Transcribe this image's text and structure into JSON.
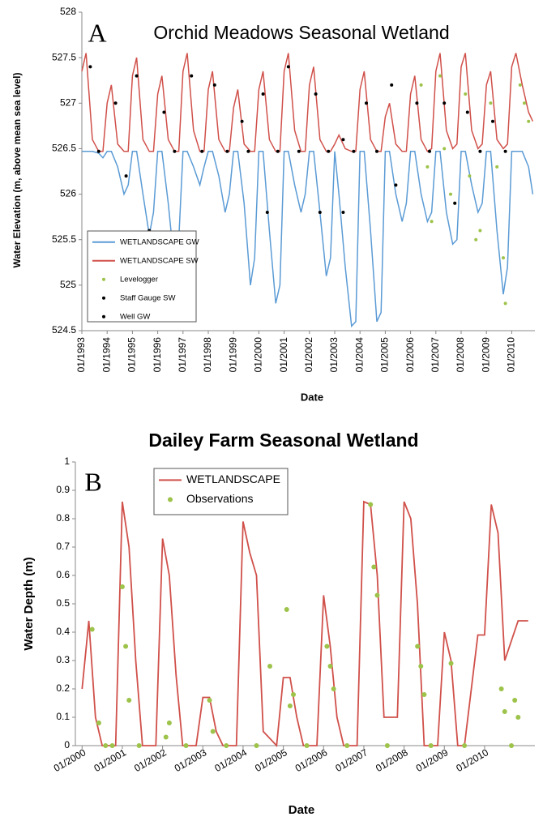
{
  "chart_data": [
    {
      "type": "line",
      "panel_label": "A",
      "title": "Orchid Meadows Seasonal Wetland",
      "y_label": "Water Elevation (m, above mean sea level)",
      "x_label": "Date",
      "legend": "lower left",
      "xlim": [
        "1993-01",
        "2010-12"
      ],
      "xticks": [
        {
          "value": "1993-01",
          "label": "01/1993"
        },
        {
          "value": "1994-01",
          "label": "01/1994"
        },
        {
          "value": "1995-01",
          "label": "01/1995"
        },
        {
          "value": "1996-01",
          "label": "01/1996"
        },
        {
          "value": "1997-01",
          "label": "01/1997"
        },
        {
          "value": "1998-01",
          "label": "01/1998"
        },
        {
          "value": "1999-01",
          "label": "01/1999"
        },
        {
          "value": "2000-01",
          "label": "01/2000"
        },
        {
          "value": "2001-01",
          "label": "01/2001"
        },
        {
          "value": "2002-01",
          "label": "01/2002"
        },
        {
          "value": "2003-01",
          "label": "01/2003"
        },
        {
          "value": "2004-01",
          "label": "01/2004"
        },
        {
          "value": "2005-01",
          "label": "01/2005"
        },
        {
          "value": "2006-01",
          "label": "01/2006"
        },
        {
          "value": "2007-01",
          "label": "01/2007"
        },
        {
          "value": "2008-01",
          "label": "01/2008"
        },
        {
          "value": "2009-01",
          "label": "01/2009"
        },
        {
          "value": "2010-01",
          "label": "01/2010"
        }
      ],
      "ylim": [
        524.5,
        528
      ],
      "yticks": [
        524.5,
        525,
        525.5,
        526,
        526.5,
        527,
        527.5,
        528
      ],
      "x": [
        "1993-01",
        "1993-03",
        "1993-06",
        "1993-09",
        "1993-11",
        "1994-01",
        "1994-03",
        "1994-06",
        "1994-09",
        "1994-11",
        "1995-01",
        "1995-03",
        "1995-06",
        "1995-09",
        "1995-11",
        "1996-01",
        "1996-03",
        "1996-06",
        "1996-09",
        "1996-11",
        "1997-01",
        "1997-03",
        "1997-06",
        "1997-09",
        "1997-11",
        "1998-01",
        "1998-03",
        "1998-06",
        "1998-09",
        "1998-11",
        "1999-01",
        "1999-03",
        "1999-06",
        "1999-09",
        "1999-11",
        "2000-01",
        "2000-03",
        "2000-06",
        "2000-09",
        "2000-11",
        "2001-01",
        "2001-03",
        "2001-06",
        "2001-09",
        "2001-11",
        "2002-01",
        "2002-03",
        "2002-06",
        "2002-09",
        "2002-11",
        "2003-01",
        "2003-03",
        "2003-06",
        "2003-09",
        "2003-11",
        "2004-01",
        "2004-03",
        "2004-06",
        "2004-09",
        "2004-11",
        "2005-01",
        "2005-03",
        "2005-06",
        "2005-09",
        "2005-11",
        "2006-01",
        "2006-03",
        "2006-06",
        "2006-09",
        "2006-11",
        "2007-01",
        "2007-03",
        "2007-06",
        "2007-09",
        "2007-11",
        "2008-01",
        "2008-03",
        "2008-06",
        "2008-09",
        "2008-11",
        "2009-01",
        "2009-03",
        "2009-06",
        "2009-09",
        "2009-11",
        "2010-01",
        "2010-03",
        "2010-06",
        "2010-09",
        "2010-11"
      ],
      "series": [
        {
          "name": "WETLANDSCAPE GW",
          "type": "line",
          "color": "#5b9bd5",
          "values": [
            526.47,
            526.47,
            526.47,
            526.45,
            526.4,
            526.47,
            526.47,
            526.3,
            526.0,
            526.1,
            526.47,
            526.47,
            526.0,
            525.55,
            525.8,
            526.47,
            526.47,
            525.9,
            525.2,
            525.5,
            526.47,
            526.47,
            526.3,
            526.1,
            526.3,
            526.47,
            526.47,
            526.2,
            525.8,
            526.0,
            526.47,
            526.47,
            525.9,
            525.0,
            525.3,
            526.47,
            526.47,
            525.6,
            524.8,
            525.0,
            526.47,
            526.47,
            526.1,
            525.8,
            526.0,
            526.47,
            526.47,
            525.8,
            525.1,
            525.3,
            526.47,
            526.0,
            525.2,
            524.55,
            524.6,
            526.47,
            526.47,
            525.6,
            524.6,
            524.7,
            526.47,
            526.47,
            526.0,
            525.7,
            525.9,
            526.47,
            526.47,
            526.0,
            525.7,
            525.8,
            526.47,
            526.47,
            525.8,
            525.45,
            525.5,
            526.47,
            526.47,
            526.1,
            525.8,
            525.9,
            526.47,
            526.47,
            525.6,
            524.9,
            525.2,
            526.47,
            526.47,
            526.47,
            526.3,
            526.0
          ]
        },
        {
          "name": "WETLANDSCAPE SW",
          "type": "line",
          "color": "#d0504a",
          "values": [
            527.35,
            527.55,
            526.6,
            526.47,
            526.47,
            527.0,
            527.2,
            526.55,
            526.47,
            526.47,
            527.3,
            527.5,
            526.6,
            526.47,
            526.47,
            527.1,
            527.3,
            526.6,
            526.47,
            526.47,
            527.35,
            527.55,
            526.7,
            526.47,
            526.47,
            527.15,
            527.35,
            526.6,
            526.47,
            526.47,
            526.95,
            527.15,
            526.55,
            526.47,
            526.47,
            527.15,
            527.35,
            526.6,
            526.47,
            526.47,
            527.35,
            527.55,
            526.7,
            526.47,
            526.47,
            527.2,
            527.4,
            526.6,
            526.47,
            526.47,
            526.55,
            526.65,
            526.5,
            526.47,
            526.47,
            527.15,
            527.35,
            526.6,
            526.47,
            526.47,
            526.85,
            527.0,
            526.55,
            526.47,
            526.47,
            527.1,
            527.3,
            526.6,
            526.47,
            526.5,
            527.35,
            527.55,
            526.7,
            526.5,
            526.55,
            527.4,
            527.55,
            526.7,
            526.5,
            526.55,
            527.2,
            527.35,
            526.6,
            526.5,
            526.55,
            527.4,
            527.55,
            527.2,
            526.9,
            526.8
          ]
        },
        {
          "name": "Levelogger",
          "type": "scatter",
          "color": "#9dc34a",
          "x": [
            "2006-06",
            "2006-09",
            "2006-11",
            "2007-03",
            "2007-05",
            "2007-08",
            "2007-10",
            "2008-03",
            "2008-05",
            "2008-08",
            "2008-10",
            "2009-03",
            "2009-06",
            "2009-09",
            "2009-10",
            "2010-05",
            "2010-07",
            "2010-09"
          ],
          "values": [
            527.2,
            526.3,
            525.7,
            527.3,
            526.5,
            526.0,
            525.9,
            527.1,
            526.2,
            525.5,
            525.6,
            527.0,
            526.3,
            525.3,
            524.8,
            527.2,
            527.0,
            526.8
          ]
        },
        {
          "name": "Staff Gauge SW",
          "type": "scatter",
          "color": "#000000",
          "x": [
            "1993-05",
            "1994-05",
            "1995-03",
            "1996-04",
            "1997-05",
            "1998-04",
            "1999-05",
            "2000-03",
            "2001-03",
            "2002-04",
            "2003-05",
            "2004-04",
            "2005-04",
            "2006-04",
            "2007-05",
            "2008-04",
            "2009-04"
          ],
          "values": [
            527.4,
            527.0,
            527.3,
            526.9,
            527.3,
            527.2,
            526.8,
            527.1,
            527.4,
            527.1,
            526.6,
            527.0,
            527.2,
            527.0,
            527.0,
            526.9,
            526.8
          ]
        },
        {
          "name": "Well GW",
          "type": "scatter",
          "color": "#000000",
          "x": [
            "1993-09",
            "1994-10",
            "1995-09",
            "1996-09",
            "1997-10",
            "1998-10",
            "1999-08",
            "2000-05",
            "2000-10",
            "2001-08",
            "2002-06",
            "2002-10",
            "2003-05",
            "2003-10",
            "2004-09",
            "2005-06",
            "2006-10",
            "2007-10",
            "2008-10",
            "2009-10"
          ],
          "values": [
            526.47,
            526.2,
            525.6,
            526.47,
            526.47,
            526.47,
            526.47,
            525.8,
            526.47,
            526.47,
            525.8,
            526.47,
            525.8,
            526.47,
            526.47,
            526.1,
            526.47,
            525.9,
            526.47,
            526.47
          ]
        }
      ]
    },
    {
      "type": "line",
      "panel_label": "B",
      "title": "Dailey Farm Seasonal Wetland",
      "y_label": "Water Depth (m)",
      "x_label": "Date",
      "legend": "upper center",
      "xlim": [
        "1999-11",
        "2011-04"
      ],
      "xticks": [
        {
          "value": "2000-01",
          "label": "01/2000"
        },
        {
          "value": "2001-01",
          "label": "01/2001"
        },
        {
          "value": "2002-01",
          "label": "01/2002"
        },
        {
          "value": "2003-01",
          "label": "01/2003"
        },
        {
          "value": "2004-01",
          "label": "01/2004"
        },
        {
          "value": "2005-01",
          "label": "01/2005"
        },
        {
          "value": "2006-01",
          "label": "01/2006"
        },
        {
          "value": "2007-01",
          "label": "01/2007"
        },
        {
          "value": "2008-01",
          "label": "01/2008"
        },
        {
          "value": "2009-01",
          "label": "01/2009"
        },
        {
          "value": "2010-01",
          "label": "01/2010"
        }
      ],
      "ylim": [
        0,
        1
      ],
      "yticks": [
        0,
        0.1,
        0.2,
        0.3,
        0.4,
        0.5,
        0.6,
        0.7,
        0.8,
        0.9,
        1
      ],
      "x": [
        "2000-01",
        "2000-03",
        "2000-05",
        "2000-07",
        "2000-11",
        "2001-01",
        "2001-03",
        "2001-05",
        "2001-07",
        "2001-11",
        "2002-01",
        "2002-03",
        "2002-05",
        "2002-07",
        "2002-11",
        "2003-01",
        "2003-03",
        "2003-05",
        "2003-07",
        "2003-11",
        "2004-01",
        "2004-03",
        "2004-05",
        "2004-07",
        "2004-11",
        "2005-01",
        "2005-03",
        "2005-05",
        "2005-07",
        "2005-11",
        "2006-01",
        "2006-03",
        "2006-05",
        "2006-07",
        "2006-11",
        "2007-01",
        "2007-03",
        "2007-05",
        "2007-07",
        "2007-11",
        "2008-01",
        "2008-03",
        "2008-05",
        "2008-07",
        "2008-11",
        "2009-01",
        "2009-03",
        "2009-05",
        "2009-07",
        "2009-11",
        "2010-01",
        "2010-03",
        "2010-05",
        "2010-07",
        "2010-11",
        "2011-02"
      ],
      "series": [
        {
          "name": "WETLANDSCAPE",
          "type": "line",
          "color": "#d0504a",
          "values": [
            0.2,
            0.44,
            0.1,
            0,
            0,
            0.86,
            0.7,
            0.3,
            0,
            0,
            0.73,
            0.6,
            0.25,
            0,
            0,
            0.17,
            0.17,
            0.05,
            0,
            0,
            0.79,
            0.68,
            0.6,
            0.05,
            0,
            0.24,
            0.24,
            0.1,
            0,
            0,
            0.53,
            0.35,
            0.1,
            0,
            0,
            0.86,
            0.85,
            0.6,
            0.1,
            0.1,
            0.86,
            0.8,
            0.5,
            0,
            0,
            0.4,
            0.3,
            0,
            0,
            0.39,
            0.39,
            0.85,
            0.75,
            0.3,
            0.44,
            0.44
          ]
        },
        {
          "name": "Observations",
          "type": "scatter",
          "color": "#9dc34a",
          "x": [
            "2000-04",
            "2000-06",
            "2000-08",
            "2000-10",
            "2001-01",
            "2001-02",
            "2001-03",
            "2001-06",
            "2002-02",
            "2002-03",
            "2002-08",
            "2003-03",
            "2003-04",
            "2003-08",
            "2004-05",
            "2004-09",
            "2005-02",
            "2005-03",
            "2005-04",
            "2005-08",
            "2006-02",
            "2006-03",
            "2006-04",
            "2006-08",
            "2007-03",
            "2007-04",
            "2007-05",
            "2007-08",
            "2008-05",
            "2008-06",
            "2008-07",
            "2008-09",
            "2009-03",
            "2009-07",
            "2010-06",
            "2010-07",
            "2010-09",
            "2010-10",
            "2010-11"
          ],
          "values": [
            0.41,
            0.08,
            0,
            0,
            0.56,
            0.35,
            0.16,
            0,
            0.03,
            0.08,
            0,
            0.16,
            0.05,
            0,
            0,
            0.28,
            0.48,
            0.14,
            0.18,
            0,
            0.35,
            0.28,
            0.2,
            0,
            0.85,
            0.63,
            0.53,
            0,
            0.35,
            0.28,
            0.18,
            0,
            0.29,
            0,
            0.2,
            0.12,
            0,
            0.16,
            0.1
          ]
        }
      ]
    }
  ]
}
